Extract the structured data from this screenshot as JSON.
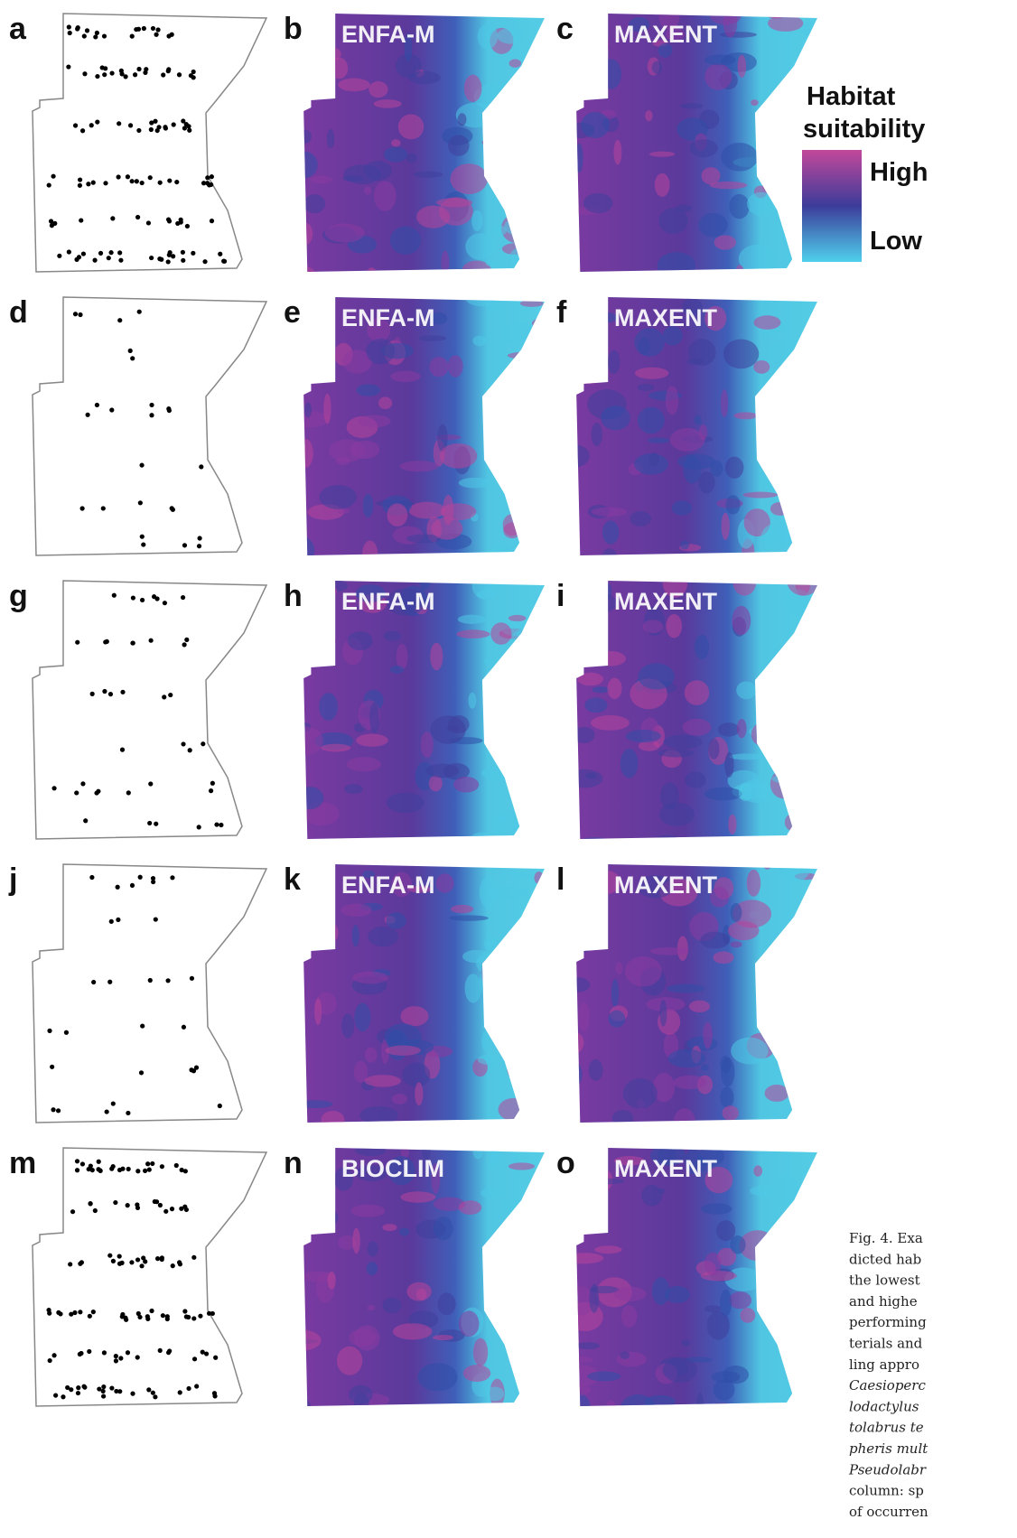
{
  "rows": [
    {
      "occurrence": {
        "letter": "a"
      },
      "model1": {
        "letter": "b",
        "method": "ENFA-M"
      },
      "model2": {
        "letter": "c",
        "method": "MAXENT"
      }
    },
    {
      "occurrence": {
        "letter": "d"
      },
      "model1": {
        "letter": "e",
        "method": "ENFA-M"
      },
      "model2": {
        "letter": "f",
        "method": "MAXENT"
      }
    },
    {
      "occurrence": {
        "letter": "g"
      },
      "model1": {
        "letter": "h",
        "method": "ENFA-M"
      },
      "model2": {
        "letter": "i",
        "method": "MAXENT"
      }
    },
    {
      "occurrence": {
        "letter": "j"
      },
      "model1": {
        "letter": "k",
        "method": "ENFA-M"
      },
      "model2": {
        "letter": "l",
        "method": "MAXENT"
      }
    },
    {
      "occurrence": {
        "letter": "m"
      },
      "model1": {
        "letter": "n",
        "method": "BIOCLIM"
      },
      "model2": {
        "letter": "o",
        "method": "MAXENT"
      }
    }
  ],
  "legend": {
    "title": [
      "Habitat",
      "suitability"
    ],
    "high": "High",
    "low": "Low"
  },
  "caption": [
    "Fig. 4. Exa",
    "dicted hab",
    "the lowest",
    "and highe",
    "performing",
    "terials and",
    "ling appro",
    "Caesioperc",
    "lodactylus",
    "tolabrus te",
    "pheris mult",
    "Pseudolabr",
    "column: sp",
    "of occurren"
  ]
}
